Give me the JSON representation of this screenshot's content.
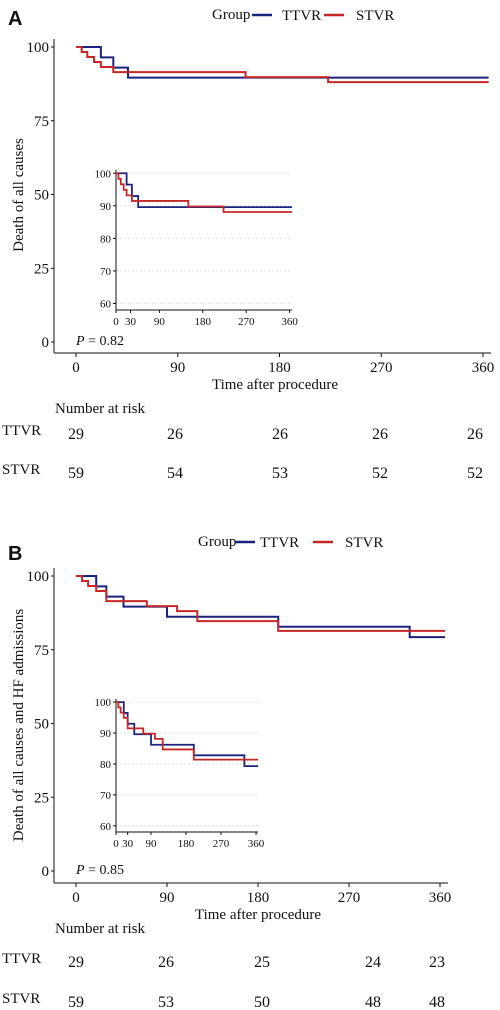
{
  "chart_data": [
    {
      "type": "line",
      "panel_label": "A",
      "legend": {
        "title": "Group",
        "position": "top",
        "entries": [
          "TTVR",
          "STVR"
        ]
      },
      "colors": {
        "TTVR": "#1a237e",
        "STVR": "#c62828"
      },
      "ylabel": "Death of all causes",
      "xlabel": "Time after procedure",
      "xlim": [
        0,
        360
      ],
      "ylim": [
        0,
        100
      ],
      "xticks": [
        "0",
        "90",
        "180",
        "270",
        "360"
      ],
      "yticks": [
        "0",
        "25",
        "50",
        "75",
        "100"
      ],
      "p_label": "P",
      "p_value": " = 0.82",
      "series": [
        {
          "name": "TTVR",
          "x": [
            0,
            22,
            22,
            33,
            33,
            46,
            46,
            365
          ],
          "y": [
            100,
            100,
            96.5,
            96.5,
            93,
            93,
            89.6,
            89.6
          ]
        },
        {
          "name": "STVR",
          "x": [
            0,
            5,
            5,
            10,
            10,
            16,
            16,
            22,
            22,
            33,
            33,
            45,
            45,
            150,
            150,
            223,
            223,
            365
          ],
          "y": [
            100,
            100,
            98.3,
            98.3,
            96.6,
            96.6,
            94.9,
            94.9,
            93.2,
            93.2,
            91.5,
            91.5,
            91.5,
            91.5,
            89.8,
            89.8,
            88.1,
            88.1
          ]
        }
      ],
      "inset": {
        "xlim": [
          0,
          365
        ],
        "ylim": [
          58,
          101
        ],
        "xticks": [
          "0",
          "30",
          "90",
          "180",
          "270",
          "360"
        ],
        "yticks": [
          "60",
          "70",
          "80",
          "90",
          "100"
        ]
      },
      "risk_table": {
        "title": "Number at risk",
        "rows": [
          {
            "label": "TTVR",
            "values": [
              "29",
              "26",
              "26",
              "26",
              "26"
            ]
          },
          {
            "label": "STVR",
            "values": [
              "59",
              "54",
              "53",
              "52",
              "52"
            ]
          }
        ]
      }
    },
    {
      "type": "line",
      "panel_label": "B",
      "legend": {
        "title": "Group",
        "position": "top",
        "entries": [
          "TTVR",
          "STVR"
        ]
      },
      "colors": {
        "TTVR": "#1a237e",
        "STVR": "#c62828"
      },
      "ylabel": "Death of all causes and HF admissions",
      "xlabel": "Time  after procedure",
      "xlim": [
        0,
        360
      ],
      "ylim": [
        0,
        100
      ],
      "xticks": [
        "0",
        "90",
        "180",
        "270",
        "360"
      ],
      "yticks": [
        "0",
        "25",
        "50",
        "75",
        "100"
      ],
      "p_label": "P",
      "p_value": " = 0.85",
      "series": [
        {
          "name": "TTVR",
          "x": [
            0,
            20,
            20,
            30,
            30,
            47,
            47,
            90,
            90,
            200,
            200,
            330,
            330,
            365
          ],
          "y": [
            100,
            100,
            96.5,
            96.5,
            93,
            93,
            89.6,
            89.6,
            86.2,
            86.2,
            82.8,
            82.8,
            79.3,
            79.3
          ]
        },
        {
          "name": "STVR",
          "x": [
            0,
            6,
            6,
            12,
            12,
            20,
            20,
            30,
            30,
            70,
            70,
            100,
            100,
            120,
            120,
            200,
            200,
            365
          ],
          "y": [
            100,
            100,
            98.3,
            98.3,
            96.6,
            96.6,
            94.9,
            94.9,
            91.5,
            91.5,
            89.8,
            89.8,
            88.1,
            88.1,
            84.7,
            84.7,
            81.4,
            81.4
          ]
        }
      ],
      "inset": {
        "xlim": [
          0,
          365
        ],
        "ylim": [
          58,
          101
        ],
        "xticks": [
          "0",
          "30",
          "90",
          "180",
          "270",
          "360"
        ],
        "yticks": [
          "60",
          "70",
          "80",
          "90",
          "100"
        ]
      },
      "risk_table": {
        "title": "Number at risk",
        "rows": [
          {
            "label": "TTVR",
            "values": [
              "29",
              "26",
              "25",
              "24",
              "23"
            ]
          },
          {
            "label": "STVR",
            "values": [
              "59",
              "53",
              "50",
              "48",
              "48"
            ]
          }
        ]
      }
    }
  ]
}
